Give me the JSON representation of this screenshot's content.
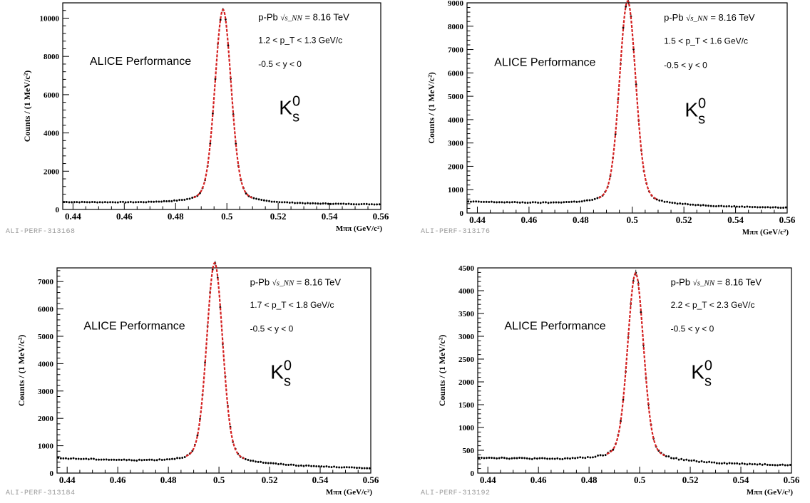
{
  "chart_data": [
    {
      "type": "scatter",
      "id_label": "ALI-PERF-313168",
      "experiment_label": "ALICE Performance",
      "collision_label": "p-Pb",
      "energy_label": "= 8.16 TeV",
      "energy_symbol": "√s_NN",
      "pt_range_label": "1.2 < p_T < 1.3 GeV/c",
      "pt_range": [
        1.2,
        1.3
      ],
      "rapidity_label": "-0.5 < y < 0",
      "particle_label": "K0s",
      "xlabel": "Mππ (GeV/c²)",
      "ylabel": "Counts / (1 MeV/c²)",
      "xlim": [
        0.436,
        0.56
      ],
      "ylim": [
        0,
        10800
      ],
      "x_ticks": [
        "0.44",
        "0.46",
        "0.48",
        "0.5",
        "0.52",
        "0.54",
        "0.56"
      ],
      "y_ticks": [
        "0",
        "2000",
        "4000",
        "6000",
        "8000",
        "10000"
      ],
      "peak_mass": 0.4985,
      "peak_counts": 10200,
      "background_left": 380,
      "background_right": 260,
      "fit_color": "#d42020",
      "marker_color": "#000000"
    },
    {
      "type": "scatter",
      "id_label": "ALI-PERF-313176",
      "experiment_label": "ALICE Performance",
      "collision_label": "p-Pb",
      "energy_label": "= 8.16 TeV",
      "energy_symbol": "√s_NN",
      "pt_range_label": "1.5 < p_T < 1.6 GeV/c",
      "pt_range": [
        1.5,
        1.6
      ],
      "rapidity_label": "-0.5 < y < 0",
      "particle_label": "K0s",
      "xlabel": "Mππ (GeV/c²)",
      "ylabel": "Counts / (1 MeV/c²)",
      "xlim": [
        0.436,
        0.56
      ],
      "ylim": [
        0,
        9000
      ],
      "x_ticks": [
        "0.44",
        "0.46",
        "0.48",
        "0.5",
        "0.52",
        "0.54",
        "0.56"
      ],
      "y_ticks": [
        "0",
        "1000",
        "2000",
        "3000",
        "4000",
        "5000",
        "6000",
        "7000",
        "8000",
        "9000"
      ],
      "peak_mass": 0.4982,
      "peak_counts": 8850,
      "background_left": 480,
      "background_right": 220,
      "fit_color": "#d42020",
      "marker_color": "#000000"
    },
    {
      "type": "scatter",
      "id_label": "ALI-PERF-313184",
      "experiment_label": "ALICE Performance",
      "collision_label": "p-Pb",
      "energy_label": "= 8.16 TeV",
      "energy_symbol": "√s_NN",
      "pt_range_label": "1.7 < p_T < 1.8 GeV/c",
      "pt_range": [
        1.7,
        1.8
      ],
      "rapidity_label": "-0.5 < y < 0",
      "particle_label": "K0s",
      "xlabel": "Mππ (GeV/c²)",
      "ylabel": "Counts / (1 MeV/c²)",
      "xlim": [
        0.436,
        0.56
      ],
      "ylim": [
        0,
        7500
      ],
      "x_ticks": [
        "0.44",
        "0.46",
        "0.48",
        "0.5",
        "0.52",
        "0.54",
        "0.56"
      ],
      "y_ticks": [
        "0",
        "1000",
        "2000",
        "3000",
        "4000",
        "5000",
        "6000",
        "7000"
      ],
      "peak_mass": 0.4983,
      "peak_counts": 7480,
      "background_left": 540,
      "background_right": 170,
      "fit_color": "#d42020",
      "marker_color": "#000000"
    },
    {
      "type": "scatter",
      "id_label": "ALI-PERF-313192",
      "experiment_label": "ALICE Performance",
      "collision_label": "p-Pb",
      "energy_label": "= 8.16 TeV",
      "energy_symbol": "√s_NN",
      "pt_range_label": "2.2 < p_T < 2.3 GeV/c",
      "pt_range": [
        2.2,
        2.3
      ],
      "rapidity_label": "-0.5 < y < 0",
      "particle_label": "K0s",
      "xlabel": "Mππ (GeV/c²)",
      "ylabel": "Counts / (1 MeV/c²)",
      "xlim": [
        0.436,
        0.56
      ],
      "ylim": [
        0,
        4500
      ],
      "x_ticks": [
        "0.44",
        "0.46",
        "0.48",
        "0.5",
        "0.52",
        "0.54",
        "0.56"
      ],
      "y_ticks": [
        "0",
        "500",
        "1000",
        "1500",
        "2000",
        "2500",
        "3000",
        "3500",
        "4000",
        "4500"
      ],
      "peak_mass": 0.4984,
      "peak_counts": 4180,
      "background_left": 340,
      "background_right": 170,
      "fit_color": "#d42020",
      "marker_color": "#000000"
    }
  ]
}
